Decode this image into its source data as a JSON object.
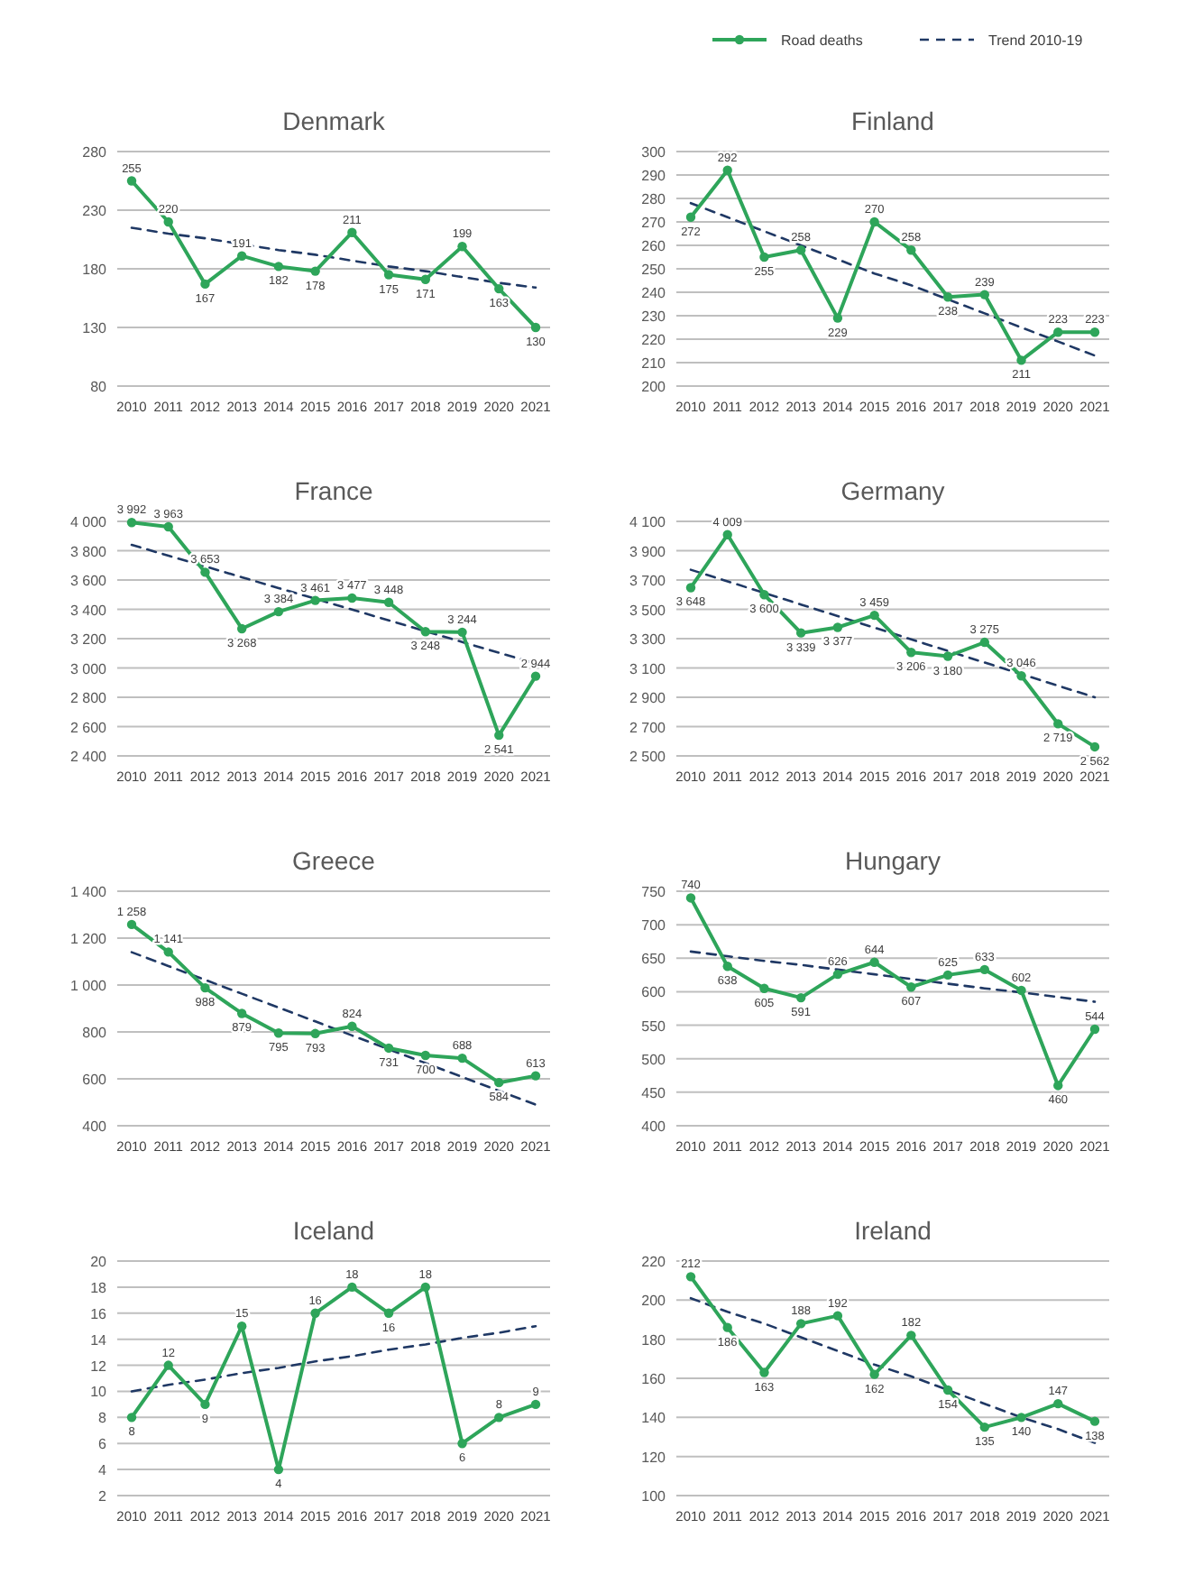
{
  "chart_data": [
    {
      "type": "line",
      "title": "Denmark",
      "categories": [
        "2010",
        "2011",
        "2012",
        "2013",
        "2014",
        "2015",
        "2016",
        "2017",
        "2018",
        "2019",
        "2020",
        "2021"
      ],
      "ylim": [
        80,
        280
      ],
      "yticks": [
        80,
        130,
        180,
        230,
        280
      ],
      "grid": "y",
      "marker": "circle",
      "series": [
        {
          "color": "#2ea55a",
          "values": [
            255,
            220,
            167,
            191,
            182,
            178,
            211,
            175,
            171,
            199,
            163,
            130
          ],
          "value_labels": [
            "255",
            "220",
            "167",
            "191",
            "182",
            "178",
            "211",
            "175",
            "171",
            "199",
            "163",
            "130"
          ]
        },
        {
          "color": "#1f3864",
          "line_style": "dashed",
          "marker": "none",
          "values": [
            215,
            210,
            206,
            201,
            196,
            192,
            187,
            182,
            178,
            173,
            168,
            164
          ]
        }
      ]
    },
    {
      "type": "line",
      "title": "Finland",
      "categories": [
        "2010",
        "2011",
        "2012",
        "2013",
        "2014",
        "2015",
        "2016",
        "2017",
        "2018",
        "2019",
        "2020",
        "2021"
      ],
      "ylim": [
        200,
        300
      ],
      "yticks": [
        200,
        210,
        220,
        230,
        240,
        250,
        260,
        270,
        280,
        290,
        300
      ],
      "grid": "y",
      "marker": "circle",
      "legend": "top right",
      "series": [
        {
          "name": "Road deaths",
          "color": "#2ea55a",
          "values": [
            272,
            292,
            255,
            258,
            229,
            270,
            258,
            238,
            239,
            211,
            223,
            223
          ],
          "value_labels": [
            "272",
            "292",
            "255",
            "258",
            "229",
            "270",
            "258",
            "238",
            "239",
            "211",
            "223",
            "223"
          ]
        },
        {
          "name": "Trend 2010-19",
          "color": "#1f3864",
          "line_style": "dashed",
          "marker": "none",
          "values": [
            278,
            272,
            266,
            260,
            254,
            248,
            243,
            237,
            231,
            225,
            219,
            213
          ]
        }
      ]
    },
    {
      "type": "line",
      "title": "France",
      "categories": [
        "2010",
        "2011",
        "2012",
        "2013",
        "2014",
        "2015",
        "2016",
        "2017",
        "2018",
        "2019",
        "2020",
        "2021"
      ],
      "ylim": [
        2400,
        4000
      ],
      "yticks": [
        {
          "value": 2400,
          "label": "2 400"
        },
        {
          "value": 2600,
          "label": "2 600"
        },
        {
          "value": 2800,
          "label": "2 800"
        },
        {
          "value": 3000,
          "label": "3 000"
        },
        {
          "value": 3200,
          "label": "3 200"
        },
        {
          "value": 3400,
          "label": "3 400"
        },
        {
          "value": 3600,
          "label": "3 600"
        },
        {
          "value": 3800,
          "label": "3 800"
        },
        {
          "value": 4000,
          "label": "4 000"
        }
      ],
      "grid": "y",
      "marker": "circle",
      "series": [
        {
          "color": "#2ea55a",
          "values": [
            3992,
            3963,
            3653,
            3268,
            3384,
            3461,
            3477,
            3448,
            3248,
            3244,
            2541,
            2944
          ],
          "value_labels": [
            "3 992",
            "3 963",
            "3 653",
            "3 268",
            "3 384",
            "3 461",
            "3 477",
            "3 448",
            "3 248",
            "3 244",
            "2 541",
            "2 944"
          ]
        },
        {
          "color": "#1f3864",
          "line_style": "dashed",
          "marker": "none",
          "values": [
            3840,
            3766,
            3693,
            3619,
            3545,
            3472,
            3398,
            3325,
            3251,
            3177,
            3104,
            3030
          ]
        }
      ]
    },
    {
      "type": "line",
      "title": "Germany",
      "categories": [
        "2010",
        "2011",
        "2012",
        "2013",
        "2014",
        "2015",
        "2016",
        "2017",
        "2018",
        "2019",
        "2020",
        "2021"
      ],
      "ylim": [
        2500,
        4100
      ],
      "yticks": [
        {
          "value": 2500,
          "label": "2 500"
        },
        {
          "value": 2700,
          "label": "2 700"
        },
        {
          "value": 2900,
          "label": "2 900"
        },
        {
          "value": 3100,
          "label": "3 100"
        },
        {
          "value": 3300,
          "label": "3 300"
        },
        {
          "value": 3500,
          "label": "3 500"
        },
        {
          "value": 3700,
          "label": "3 700"
        },
        {
          "value": 3900,
          "label": "3 900"
        },
        {
          "value": 4100,
          "label": "4 100"
        }
      ],
      "grid": "y",
      "marker": "circle",
      "series": [
        {
          "color": "#2ea55a",
          "values": [
            3648,
            4009,
            3600,
            3339,
            3377,
            3459,
            3206,
            3180,
            3275,
            3046,
            2719,
            2562
          ],
          "value_labels": [
            "3 648",
            "4 009",
            "3 600",
            "3 339",
            "3 377",
            "3 459",
            "3 206",
            "3 180",
            "3 275",
            "3 046",
            "2 719",
            "2 562"
          ]
        },
        {
          "color": "#1f3864",
          "line_style": "dashed",
          "marker": "none",
          "values": [
            3770,
            3691,
            3612,
            3533,
            3454,
            3375,
            3295,
            3216,
            3137,
            3058,
            2979,
            2900
          ]
        }
      ]
    },
    {
      "type": "line",
      "title": "Greece",
      "categories": [
        "2010",
        "2011",
        "2012",
        "2013",
        "2014",
        "2015",
        "2016",
        "2017",
        "2018",
        "2019",
        "2020",
        "2021"
      ],
      "ylim": [
        400,
        1400
      ],
      "yticks": [
        {
          "value": 400,
          "label": "400"
        },
        {
          "value": 600,
          "label": "600"
        },
        {
          "value": 800,
          "label": "800"
        },
        {
          "value": 1000,
          "label": "1 000"
        },
        {
          "value": 1200,
          "label": "1 200"
        },
        {
          "value": 1400,
          "label": "1 400"
        }
      ],
      "grid": "y",
      "marker": "circle",
      "series": [
        {
          "color": "#2ea55a",
          "values": [
            1258,
            1141,
            988,
            879,
            795,
            793,
            824,
            731,
            700,
            688,
            584,
            613
          ],
          "value_labels": [
            "1 258",
            "1 141",
            "988",
            "879",
            "795",
            "793",
            "824",
            "731",
            "700",
            "688",
            "584",
            "613"
          ]
        },
        {
          "color": "#1f3864",
          "line_style": "dashed",
          "marker": "none",
          "values": [
            1140,
            1081,
            1022,
            963,
            904,
            845,
            785,
            726,
            667,
            608,
            549,
            490
          ]
        }
      ]
    },
    {
      "type": "line",
      "title": "Hungary",
      "categories": [
        "2010",
        "2011",
        "2012",
        "2013",
        "2014",
        "2015",
        "2016",
        "2017",
        "2018",
        "2019",
        "2020",
        "2021"
      ],
      "ylim": [
        400,
        750
      ],
      "yticks": [
        400,
        450,
        500,
        550,
        600,
        650,
        700,
        750
      ],
      "grid": "y",
      "marker": "circle",
      "series": [
        {
          "color": "#2ea55a",
          "values": [
            740,
            638,
            605,
            591,
            626,
            644,
            607,
            625,
            633,
            602,
            460,
            544
          ],
          "value_labels": [
            "740",
            "638",
            "605",
            "591",
            "626",
            "644",
            "607",
            "625",
            "633",
            "602",
            "460",
            "544"
          ]
        },
        {
          "color": "#1f3864",
          "line_style": "dashed",
          "marker": "none",
          "values": [
            660,
            653,
            646,
            640,
            633,
            626,
            619,
            612,
            605,
            599,
            592,
            585
          ]
        }
      ]
    },
    {
      "type": "line",
      "title": "Iceland",
      "categories": [
        "2010",
        "2011",
        "2012",
        "2013",
        "2014",
        "2015",
        "2016",
        "2017",
        "2018",
        "2019",
        "2020",
        "2021"
      ],
      "ylim": [
        2,
        20
      ],
      "yticks": [
        2,
        4,
        6,
        8,
        10,
        12,
        14,
        16,
        18,
        20
      ],
      "grid": "y",
      "marker": "circle",
      "series": [
        {
          "color": "#2ea55a",
          "values": [
            8,
            12,
            9,
            15,
            4,
            16,
            18,
            16,
            18,
            6,
            8,
            9
          ],
          "value_labels": [
            "8",
            "12",
            "9",
            "15",
            "4",
            "16",
            "18",
            "16",
            "18",
            "6",
            "8",
            "9"
          ]
        },
        {
          "color": "#1f3864",
          "line_style": "dashed",
          "marker": "none",
          "values": [
            10,
            10.5,
            10.9,
            11.4,
            11.8,
            12.3,
            12.7,
            13.2,
            13.6,
            14.1,
            14.5,
            15
          ]
        }
      ]
    },
    {
      "type": "line",
      "title": "Ireland",
      "categories": [
        "2010",
        "2011",
        "2012",
        "2013",
        "2014",
        "2015",
        "2016",
        "2017",
        "2018",
        "2019",
        "2020",
        "2021"
      ],
      "ylim": [
        100,
        220
      ],
      "yticks": [
        100,
        120,
        140,
        160,
        180,
        200,
        220
      ],
      "grid": "y",
      "marker": "circle",
      "series": [
        {
          "color": "#2ea55a",
          "values": [
            212,
            186,
            163,
            188,
            192,
            162,
            182,
            154,
            135,
            140,
            147,
            138
          ],
          "value_labels": [
            "212",
            "186",
            "163",
            "188",
            "192",
            "162",
            "182",
            "154",
            "135",
            "140",
            "147",
            "138"
          ]
        },
        {
          "color": "#1f3864",
          "line_style": "dashed",
          "marker": "none",
          "values": [
            201,
            194,
            188,
            181,
            174,
            167,
            161,
            154,
            147,
            140,
            134,
            127
          ]
        }
      ]
    }
  ]
}
